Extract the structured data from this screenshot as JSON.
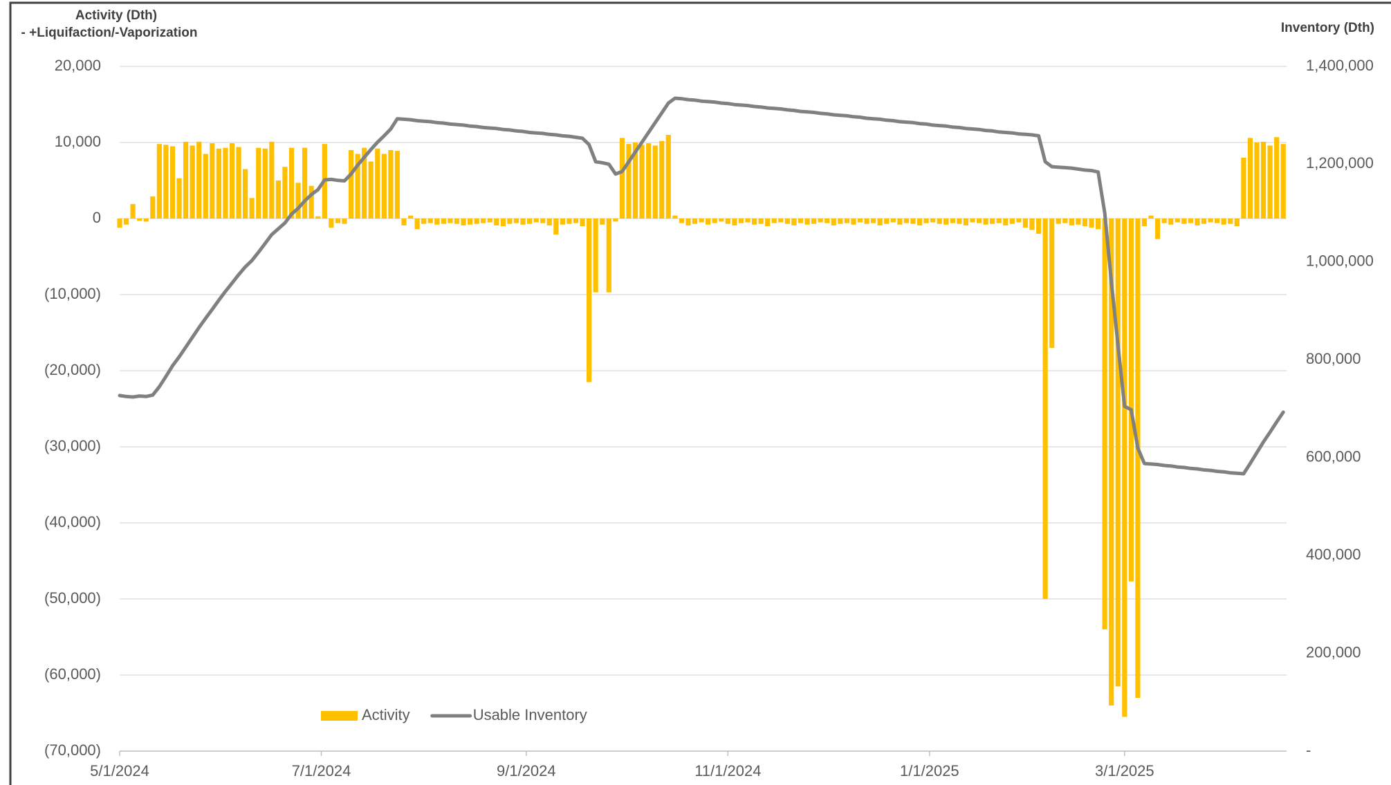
{
  "chart_data": {
    "type": "combo",
    "ylabel": "Activity (Dth)",
    "ylabel_note": "- +Liquifaction/-Vaporization",
    "y2label": "Inventory (Dth)",
    "grid": true,
    "legend": "bottom-left",
    "xlim": [
      "5/1/2024",
      "4/19/2025"
    ],
    "xticks": [
      "5/1/2024",
      "7/1/2024",
      "9/1/2024",
      "11/1/2024",
      "1/1/2025",
      "3/1/2025"
    ],
    "ylim": [
      -70000,
      20000
    ],
    "yticks": [
      {
        "value": -70000,
        "label": "(70,000)"
      },
      {
        "value": -60000,
        "label": "(60,000)"
      },
      {
        "value": -50000,
        "label": "(50,000)"
      },
      {
        "value": -40000,
        "label": "(40,000)"
      },
      {
        "value": -30000,
        "label": "(30,000)"
      },
      {
        "value": -20000,
        "label": "(20,000)"
      },
      {
        "value": -10000,
        "label": "(10,000)"
      },
      0,
      {
        "value": 10000,
        "label": "10,000"
      },
      {
        "value": 20000,
        "label": "20,000"
      }
    ],
    "y2lim": [
      0,
      1400000
    ],
    "y2ticks": [
      {
        "value": 0,
        "label": "-"
      },
      {
        "value": 200000,
        "label": "200,000"
      },
      {
        "value": 400000,
        "label": "400,000"
      },
      {
        "value": 600000,
        "label": "600,000"
      },
      {
        "value": 800000,
        "label": "800,000"
      },
      {
        "value": 1000000,
        "label": "1,000,000"
      },
      {
        "value": 1200000,
        "label": "1,200,000"
      },
      {
        "value": 1400000,
        "label": "1,400,000"
      }
    ],
    "x": [
      "5/1/2024",
      "5/3/2024",
      "5/5/2024",
      "5/7/2024",
      "5/9/2024",
      "5/11/2024",
      "5/13/2024",
      "5/15/2024",
      "5/17/2024",
      "5/19/2024",
      "5/21/2024",
      "5/23/2024",
      "5/25/2024",
      "5/27/2024",
      "5/29/2024",
      "5/31/2024",
      "6/2/2024",
      "6/4/2024",
      "6/6/2024",
      "6/8/2024",
      "6/10/2024",
      "6/12/2024",
      "6/14/2024",
      "6/16/2024",
      "6/18/2024",
      "6/20/2024",
      "6/22/2024",
      "6/24/2024",
      "6/26/2024",
      "6/28/2024",
      "6/30/2024",
      "7/2/2024",
      "7/4/2024",
      "7/6/2024",
      "7/8/2024",
      "7/10/2024",
      "7/12/2024",
      "7/14/2024",
      "7/16/2024",
      "7/18/2024",
      "7/20/2024",
      "7/22/2024",
      "7/24/2024",
      "7/26/2024",
      "7/28/2024",
      "7/30/2024",
      "8/1/2024",
      "8/3/2024",
      "8/5/2024",
      "8/7/2024",
      "8/9/2024",
      "8/11/2024",
      "8/13/2024",
      "8/15/2024",
      "8/17/2024",
      "8/19/2024",
      "8/21/2024",
      "8/23/2024",
      "8/25/2024",
      "8/27/2024",
      "8/29/2024",
      "8/31/2024",
      "9/2/2024",
      "9/4/2024",
      "9/6/2024",
      "9/8/2024",
      "9/10/2024",
      "9/12/2024",
      "9/14/2024",
      "9/16/2024",
      "9/18/2024",
      "9/20/2024",
      "9/22/2024",
      "9/24/2024",
      "9/26/2024",
      "9/28/2024",
      "9/30/2024",
      "10/2/2024",
      "10/4/2024",
      "10/6/2024",
      "10/8/2024",
      "10/10/2024",
      "10/12/2024",
      "10/14/2024",
      "10/16/2024",
      "10/18/2024",
      "10/20/2024",
      "10/22/2024",
      "10/24/2024",
      "10/26/2024",
      "10/28/2024",
      "10/30/2024",
      "11/1/2024",
      "11/3/2024",
      "11/5/2024",
      "11/7/2024",
      "11/9/2024",
      "11/11/2024",
      "11/13/2024",
      "11/15/2024",
      "11/17/2024",
      "11/19/2024",
      "11/21/2024",
      "11/23/2024",
      "11/25/2024",
      "11/27/2024",
      "11/29/2024",
      "12/1/2024",
      "12/3/2024",
      "12/5/2024",
      "12/7/2024",
      "12/9/2024",
      "12/11/2024",
      "12/13/2024",
      "12/15/2024",
      "12/17/2024",
      "12/19/2024",
      "12/21/2024",
      "12/23/2024",
      "12/25/2024",
      "12/27/2024",
      "12/29/2024",
      "12/31/2024",
      "1/2/2025",
      "1/4/2025",
      "1/6/2025",
      "1/8/2025",
      "1/10/2025",
      "1/12/2025",
      "1/14/2025",
      "1/16/2025",
      "1/18/2025",
      "1/20/2025",
      "1/22/2025",
      "1/24/2025",
      "1/26/2025",
      "1/28/2025",
      "1/30/2025",
      "2/1/2025",
      "2/3/2025",
      "2/5/2025",
      "2/7/2025",
      "2/9/2025",
      "2/11/2025",
      "2/13/2025",
      "2/15/2025",
      "2/17/2025",
      "2/19/2025",
      "2/21/2025",
      "2/23/2025",
      "2/25/2025",
      "2/27/2025",
      "3/1/2025",
      "3/3/2025",
      "3/5/2025",
      "3/7/2025",
      "3/9/2025",
      "3/11/2025",
      "3/13/2025",
      "3/15/2025",
      "3/17/2025",
      "3/19/2025",
      "3/21/2025",
      "3/23/2025",
      "3/25/2025",
      "3/27/2025",
      "3/29/2025",
      "3/31/2025",
      "4/2/2025",
      "4/4/2025",
      "4/6/2025",
      "4/8/2025",
      "4/10/2025",
      "4/12/2025",
      "4/14/2025",
      "4/16/2025",
      "4/18/2025"
    ],
    "series": [
      {
        "name": "Activity",
        "type": "bar",
        "color": "#FFC000",
        "values": [
          -1200,
          -800,
          1900,
          -300,
          -400,
          2900,
          9800,
          9700,
          9500,
          5300,
          10100,
          9600,
          10100,
          8500,
          9900,
          9200,
          9300,
          9900,
          9400,
          6500,
          2700,
          9300,
          9200,
          10100,
          5000,
          6800,
          9300,
          4700,
          9300,
          4300,
          300,
          9800,
          -1200,
          -600,
          -700,
          9000,
          8500,
          9300,
          7500,
          9200,
          8500,
          9000,
          8900,
          -900,
          400,
          -1400,
          -700,
          -600,
          -800,
          -700,
          -600,
          -700,
          -900,
          -800,
          -700,
          -600,
          -500,
          -900,
          -1000,
          -700,
          -600,
          -800,
          -700,
          -500,
          -600,
          -900,
          -2100,
          -800,
          -700,
          -600,
          -1000,
          -21500,
          -9700,
          -800,
          -9700,
          -400,
          10600,
          9800,
          10000,
          9700,
          9900,
          9600,
          10200,
          11000,
          400,
          -600,
          -900,
          -700,
          -500,
          -800,
          -600,
          -400,
          -700,
          -900,
          -600,
          -500,
          -800,
          -700,
          -1000,
          -600,
          -500,
          -700,
          -900,
          -600,
          -800,
          -700,
          -500,
          -600,
          -900,
          -700,
          -600,
          -800,
          -500,
          -700,
          -600,
          -900,
          -700,
          -500,
          -800,
          -600,
          -700,
          -900,
          -600,
          -500,
          -700,
          -800,
          -600,
          -700,
          -900,
          -500,
          -600,
          -800,
          -700,
          -600,
          -900,
          -700,
          -500,
          -1200,
          -1500,
          -2000,
          -50000,
          -17000,
          -700,
          -600,
          -900,
          -800,
          -1000,
          -1200,
          -1400,
          -54000,
          -64000,
          -61500,
          -65500,
          -47700,
          -63000,
          -1000,
          400,
          -2700,
          -600,
          -800,
          -500,
          -700,
          -600,
          -900,
          -700,
          -500,
          -600,
          -800,
          -700,
          -1000,
          8000,
          10600,
          10000,
          10100,
          9600,
          10700,
          9800
        ]
      },
      {
        "name": "Usable Inventory",
        "type": "line",
        "axis": "y2",
        "color": "#808080",
        "values": [
          727000,
          725000,
          724000,
          726000,
          725000,
          728000,
          745000,
          766000,
          788000,
          806000,
          826000,
          846000,
          866000,
          885000,
          903000,
          922000,
          940000,
          957000,
          974000,
          990000,
          1003000,
          1020000,
          1038000,
          1056000,
          1068000,
          1080000,
          1098000,
          1110000,
          1125000,
          1138000,
          1148000,
          1168000,
          1169000,
          1167000,
          1166000,
          1180000,
          1198000,
          1214000,
          1230000,
          1245000,
          1258000,
          1272000,
          1293000,
          1292000,
          1291000,
          1289000,
          1288000,
          1287000,
          1285000,
          1284000,
          1282000,
          1281000,
          1280000,
          1278000,
          1277000,
          1275000,
          1274000,
          1273000,
          1271000,
          1270000,
          1268000,
          1267000,
          1265000,
          1264000,
          1263000,
          1261000,
          1260000,
          1258000,
          1257000,
          1255000,
          1253000,
          1240000,
          1205000,
          1203000,
          1200000,
          1180000,
          1185000,
          1205000,
          1225000,
          1245000,
          1265000,
          1285000,
          1305000,
          1325000,
          1335000,
          1334000,
          1332000,
          1331000,
          1329000,
          1328000,
          1327000,
          1325000,
          1324000,
          1322000,
          1321000,
          1320000,
          1318000,
          1317000,
          1315000,
          1314000,
          1313000,
          1311000,
          1310000,
          1308000,
          1307000,
          1306000,
          1304000,
          1303000,
          1301000,
          1300000,
          1299000,
          1297000,
          1296000,
          1294000,
          1293000,
          1292000,
          1290000,
          1289000,
          1287000,
          1286000,
          1285000,
          1283000,
          1282000,
          1280000,
          1279000,
          1278000,
          1276000,
          1275000,
          1273000,
          1272000,
          1271000,
          1269000,
          1268000,
          1266000,
          1265000,
          1264000,
          1262000,
          1261000,
          1260000,
          1258000,
          1205000,
          1195000,
          1194000,
          1193000,
          1192000,
          1190000,
          1188000,
          1187000,
          1184000,
          1100000,
          960000,
          830000,
          705000,
          698000,
          620000,
          588000,
          587000,
          586000,
          584000,
          583000,
          581000,
          580000,
          578000,
          577000,
          575000,
          574000,
          572000,
          571000,
          569000,
          568000,
          567000,
          588000,
          610000,
          632000,
          652000,
          673000,
          693000
        ]
      }
    ]
  }
}
